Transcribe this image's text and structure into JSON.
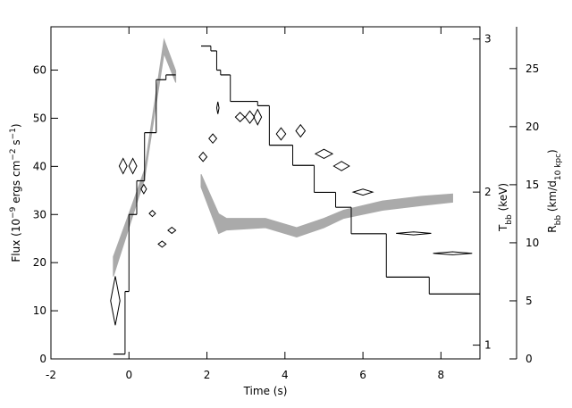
{
  "chart_data": {
    "type": "combo",
    "xlabel": "Time (s)",
    "ylabel": [
      "Flux (10",
      "−9",
      " ergs cm",
      "−2",
      " s",
      "−1",
      ")"
    ],
    "y2label": [
      "T",
      "bb",
      " (keV)"
    ],
    "y3label": [
      "R",
      "bb",
      " (km/d",
      "10 kpc",
      ")"
    ],
    "xlim": [
      -2,
      9
    ],
    "xticks": [
      -2,
      0,
      2,
      4,
      6,
      8
    ],
    "ylim": [
      0,
      69
    ],
    "yticks": [
      0,
      10,
      20,
      30,
      40,
      50,
      60
    ],
    "y2lim": [
      0.91,
      3.08
    ],
    "y2ticks": [
      1,
      2,
      3
    ],
    "y3lim": [
      0,
      28.6
    ],
    "y3ticks": [
      0,
      5,
      10,
      15,
      20,
      25
    ],
    "series": [
      {
        "type": "band",
        "axis": "y3",
        "color": "#aaaaaa",
        "x": [
          -0.4,
          0,
          0.4,
          0.9,
          1.2,
          1.5,
          1.85,
          2.3,
          2.5,
          3.5,
          4.3,
          5.0,
          5.5,
          6.5,
          7.5,
          8.3
        ],
        "lower": [
          7.1,
          11.3,
          15.5,
          26.3,
          23.8,
          null,
          14.8,
          10.8,
          11.1,
          11.3,
          10.5,
          11.3,
          12.1,
          12.8,
          13.2,
          13.5
        ],
        "upper": [
          8.8,
          12.5,
          16.3,
          27.5,
          24.8,
          null,
          15.9,
          12.5,
          12.1,
          12.1,
          11.3,
          12.1,
          12.8,
          13.6,
          14.0,
          14.2
        ]
      },
      {
        "type": "step",
        "color": "#000000",
        "bins": [
          -0.4,
          -0.1,
          0.0,
          0.2,
          0.4,
          0.7,
          0.95,
          1.2,
          1.85,
          2.1,
          2.25,
          2.35,
          2.6,
          3.3,
          3.6,
          4.2,
          4.75,
          5.3,
          5.7,
          6.6,
          7.7,
          9.0
        ],
        "values": [
          1,
          14,
          30,
          37,
          47,
          58,
          59,
          null,
          65,
          64,
          60,
          59,
          53.5,
          52.6,
          44.4,
          40.2,
          34.6,
          31.5,
          26,
          17,
          13.5
        ]
      },
      {
        "type": "diamond",
        "axis": "y2",
        "color": "#000000",
        "x": [
          -0.35,
          -0.15,
          0.1,
          0.38,
          0.6,
          0.85,
          1.1,
          1.9,
          2.15,
          2.28,
          2.85,
          3.1,
          3.3,
          3.9,
          4.4,
          5.0,
          5.45,
          6.0,
          7.3,
          8.3
        ],
        "xerr": [
          0.12,
          0.1,
          0.1,
          0.07,
          0.08,
          0.1,
          0.1,
          0.1,
          0.1,
          0.03,
          0.12,
          0.12,
          0.1,
          0.12,
          0.12,
          0.22,
          0.2,
          0.25,
          0.45,
          0.5
        ],
        "values": [
          1.29,
          2.17,
          2.17,
          2.02,
          1.86,
          1.66,
          1.75,
          2.23,
          2.35,
          2.55,
          2.49,
          2.49,
          2.49,
          2.38,
          2.4,
          2.25,
          2.17,
          2.0,
          1.73,
          1.6
        ],
        "yerr": [
          0.16,
          0.05,
          0.05,
          0.03,
          0.02,
          0.02,
          0.02,
          0.03,
          0.03,
          0.04,
          0.03,
          0.04,
          0.05,
          0.04,
          0.04,
          0.03,
          0.03,
          0.02,
          0.01,
          0.01
        ]
      }
    ]
  }
}
